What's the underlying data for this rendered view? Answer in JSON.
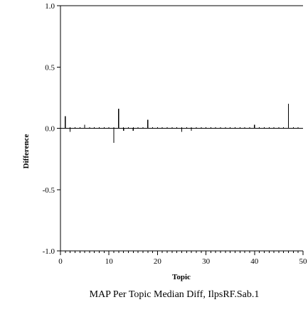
{
  "chart_data": {
    "type": "bar",
    "title": "MAP Per Topic Median Diff, IlpsRF.Sab.1",
    "xlabel": "Topic",
    "ylabel": "Difference",
    "xlim": [
      0,
      50
    ],
    "ylim": [
      -1.0,
      1.0
    ],
    "x_ticks": [
      0,
      10,
      20,
      30,
      40,
      50
    ],
    "x_tick_labels": [
      "0",
      "10",
      "20",
      "30",
      "40",
      "50"
    ],
    "y_ticks": [
      -1.0,
      -0.5,
      0.0,
      0.5,
      1.0
    ],
    "y_tick_labels": [
      "-1.0",
      "-0.5",
      "0.0",
      "0.5",
      "1.0"
    ],
    "grid": false,
    "baseline": 0.0,
    "bar_color": "#000000",
    "x": [
      1,
      2,
      5,
      11,
      12,
      13,
      15,
      18,
      25,
      27,
      40,
      47
    ],
    "values": [
      0.1,
      -0.03,
      0.03,
      -0.12,
      0.16,
      -0.02,
      -0.02,
      0.07,
      -0.03,
      -0.02,
      0.03,
      0.2
    ]
  }
}
